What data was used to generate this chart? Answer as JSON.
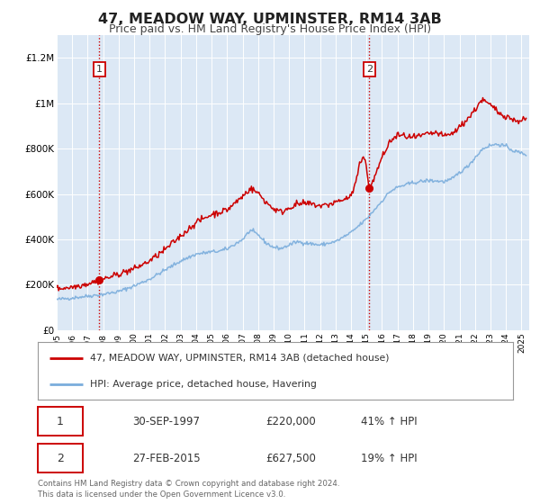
{
  "title": "47, MEADOW WAY, UPMINSTER, RM14 3AB",
  "subtitle": "Price paid vs. HM Land Registry's House Price Index (HPI)",
  "title_fontsize": 11.5,
  "subtitle_fontsize": 9,
  "bg_color": "#dce8f5",
  "red_color": "#cc0000",
  "blue_color": "#7aaddc",
  "ylim": [
    0,
    1300000
  ],
  "xlim_start": 1995.0,
  "xlim_end": 2025.5,
  "yticks": [
    0,
    200000,
    400000,
    600000,
    800000,
    1000000,
    1200000
  ],
  "ytick_labels": [
    "£0",
    "£200K",
    "£400K",
    "£600K",
    "£800K",
    "£1M",
    "£1.2M"
  ],
  "xticks": [
    1995,
    1996,
    1997,
    1998,
    1999,
    2000,
    2001,
    2002,
    2003,
    2004,
    2005,
    2006,
    2007,
    2008,
    2009,
    2010,
    2011,
    2012,
    2013,
    2014,
    2015,
    2016,
    2017,
    2018,
    2019,
    2020,
    2021,
    2022,
    2023,
    2024,
    2025
  ],
  "sale1_x": 1997.75,
  "sale1_y": 220000,
  "sale2_x": 2015.17,
  "sale2_y": 627500,
  "legend_line1": "47, MEADOW WAY, UPMINSTER, RM14 3AB (detached house)",
  "legend_line2": "HPI: Average price, detached house, Havering",
  "table_row1": [
    "1",
    "30-SEP-1997",
    "£220,000",
    "41% ↑ HPI"
  ],
  "table_row2": [
    "2",
    "27-FEB-2015",
    "£627,500",
    "19% ↑ HPI"
  ],
  "footer": "Contains HM Land Registry data © Crown copyright and database right 2024.\nThis data is licensed under the Open Government Licence v3.0."
}
